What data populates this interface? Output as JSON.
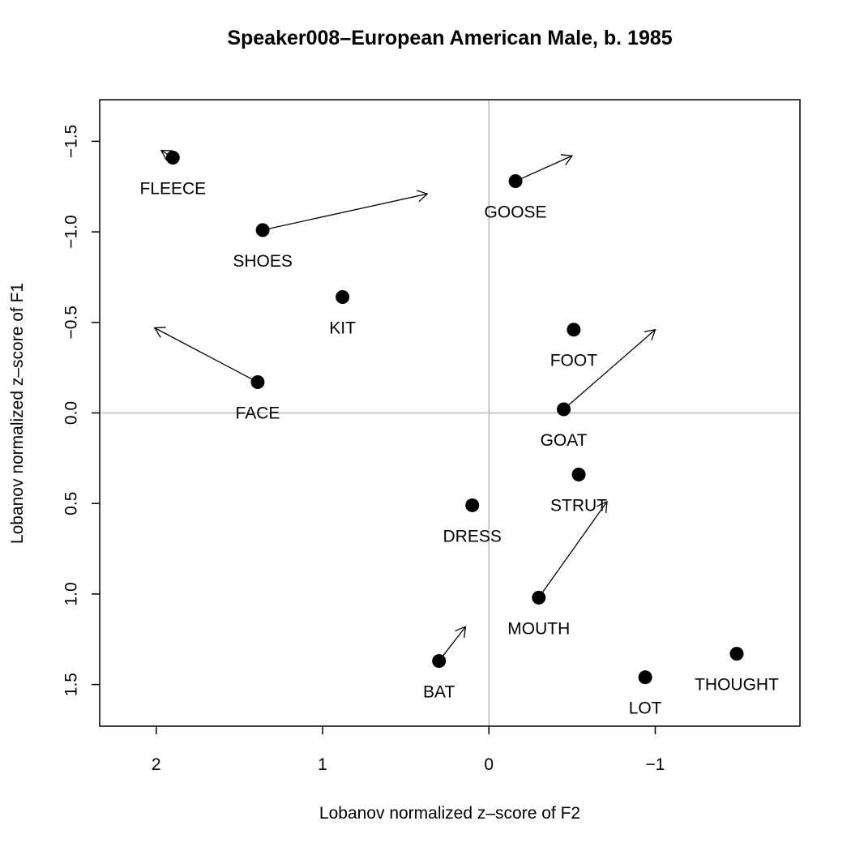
{
  "chart_data": {
    "type": "scatter",
    "title": "Speaker008–European American Male, b. 1985",
    "xlabel": "Lobanov normalized z–score of F2",
    "ylabel": "Lobanov normalized z–score of F1",
    "xlim": [
      2.34,
      -1.87
    ],
    "ylim": [
      -1.73,
      1.73
    ],
    "x_ticks": [
      {
        "value": 2,
        "label": "2"
      },
      {
        "value": 1,
        "label": "1"
      },
      {
        "value": 0,
        "label": "0"
      },
      {
        "value": -1,
        "label": "−1"
      }
    ],
    "y_ticks": [
      {
        "value": -1.5,
        "label": "−1.5"
      },
      {
        "value": -1.0,
        "label": "−1.0"
      },
      {
        "value": -0.5,
        "label": "−0.5"
      },
      {
        "value": 0.0,
        "label": "0.0"
      },
      {
        "value": 0.5,
        "label": "0.5"
      },
      {
        "value": 1.0,
        "label": "1.0"
      },
      {
        "value": 1.5,
        "label": "1.5"
      }
    ],
    "reference_lines": {
      "x": 0,
      "y": 0
    },
    "points": [
      {
        "label": "FLEECE",
        "f2": 1.9,
        "f1": -1.41
      },
      {
        "label": "GOOSE",
        "f2": -0.16,
        "f1": -1.28
      },
      {
        "label": "SHOES",
        "f2": 1.36,
        "f1": -1.01
      },
      {
        "label": "KIT",
        "f2": 0.88,
        "f1": -0.64
      },
      {
        "label": "FOOT",
        "f2": -0.51,
        "f1": -0.46
      },
      {
        "label": "FACE",
        "f2": 1.39,
        "f1": -0.17
      },
      {
        "label": "GOAT",
        "f2": -0.45,
        "f1": -0.02
      },
      {
        "label": "STRUT",
        "f2": -0.54,
        "f1": 0.34
      },
      {
        "label": "DRESS",
        "f2": 0.1,
        "f1": 0.51
      },
      {
        "label": "MOUTH",
        "f2": -0.3,
        "f1": 1.02
      },
      {
        "label": "BAT",
        "f2": 0.3,
        "f1": 1.37
      },
      {
        "label": "LOT",
        "f2": -0.94,
        "f1": 1.46
      },
      {
        "label": "THOUGHT",
        "f2": -1.49,
        "f1": 1.33
      }
    ],
    "arrows": [
      {
        "from": "FLEECE",
        "to_f2": 1.97,
        "to_f1": -1.45
      },
      {
        "from": "GOOSE",
        "to_f2": -0.5,
        "to_f1": -1.42
      },
      {
        "from": "SHOES",
        "to_f2": 0.37,
        "to_f1": -1.21
      },
      {
        "from": "FACE",
        "to_f2": 2.01,
        "to_f1": -0.47
      },
      {
        "from": "GOAT",
        "to_f2": -1.0,
        "to_f1": -0.46
      },
      {
        "from": "MOUTH",
        "to_f2": -0.71,
        "to_f1": 0.49
      },
      {
        "from": "BAT",
        "to_f2": 0.14,
        "to_f1": 1.18
      }
    ]
  }
}
